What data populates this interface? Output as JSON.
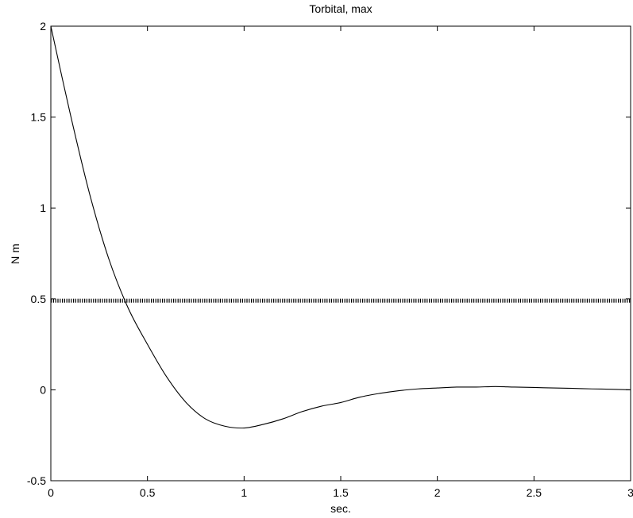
{
  "chart_data": {
    "type": "line",
    "title": "Torbital, max",
    "xlabel": "sec.",
    "ylabel": "N m",
    "xlim": [
      0,
      3
    ],
    "ylim": [
      -0.5,
      2
    ],
    "xticks": [
      0,
      0.5,
      1,
      1.5,
      2,
      2.5,
      3
    ],
    "xtick_labels": [
      "0",
      "0.5",
      "1",
      "1.5",
      "2",
      "2.5",
      "3"
    ],
    "yticks": [
      -0.5,
      0,
      0.5,
      1,
      1.5,
      2
    ],
    "ytick_labels": [
      "-0.5",
      "0",
      "0.5",
      "1",
      "1.5",
      "2"
    ],
    "grid": false,
    "series": [
      {
        "style": "solid",
        "x": [
          0,
          0.1,
          0.2,
          0.3,
          0.4,
          0.5,
          0.6,
          0.7,
          0.8,
          0.9,
          1.0,
          1.1,
          1.2,
          1.3,
          1.4,
          1.5,
          1.6,
          1.7,
          1.8,
          1.9,
          2.0,
          2.1,
          2.2,
          2.3,
          2.4,
          2.5,
          2.6,
          2.7,
          2.8,
          2.9,
          3.0
        ],
        "y": [
          2.0,
          1.52,
          1.08,
          0.72,
          0.45,
          0.25,
          0.07,
          -0.07,
          -0.16,
          -0.2,
          -0.21,
          -0.19,
          -0.16,
          -0.12,
          -0.09,
          -0.07,
          -0.04,
          -0.02,
          -0.005,
          0.005,
          0.01,
          0.015,
          0.015,
          0.018,
          0.015,
          0.013,
          0.01,
          0.008,
          0.005,
          0.003,
          0.0
        ]
      },
      {
        "style": "dotted",
        "x": [
          0,
          3
        ],
        "y": [
          0.49,
          0.49
        ]
      }
    ]
  }
}
